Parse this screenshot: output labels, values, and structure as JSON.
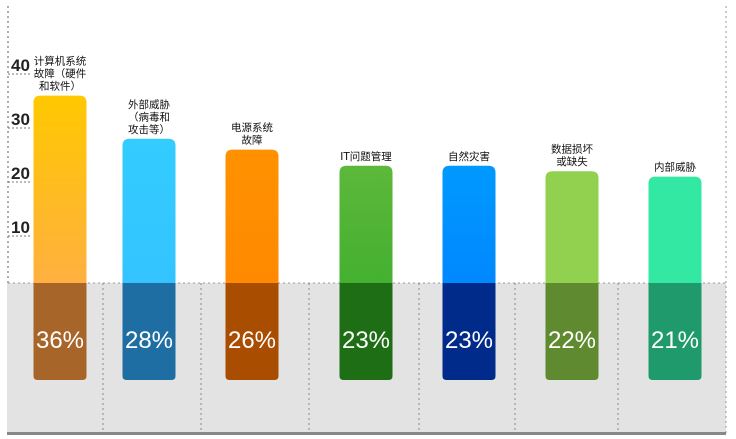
{
  "chart_data": {
    "type": "bar",
    "categories": [
      [
        "计算机系统",
        "故障（硬件",
        "和软件）"
      ],
      [
        "外部威胁",
        "（病毒和",
        "攻击等）"
      ],
      [
        "电源系统",
        "故障"
      ],
      [
        "IT问题管理"
      ],
      [
        "自然灾害"
      ],
      [
        "数据损坏",
        "或缺失"
      ],
      [
        "内部威胁"
      ]
    ],
    "values": [
      36,
      28,
      26,
      23,
      23,
      22,
      21
    ],
    "value_labels": [
      "36%",
      "28%",
      "26%",
      "23%",
      "23%",
      "22%",
      "21%"
    ],
    "yticks": [
      10,
      20,
      30,
      40
    ],
    "ylim": [
      0,
      40
    ],
    "grid": false,
    "colors": {
      "top": [
        "#ffc800",
        "#33ccff",
        "#ff9100",
        "#5cb83a",
        "#0099ff",
        "#92d050",
        "#33e8a3"
      ],
      "bottom": [
        "#ffb040",
        "#33c4ff",
        "#ff8a00",
        "#45b030",
        "#0088ff",
        "#92d050",
        "#33e8a3"
      ],
      "shade": [
        "#a8652a",
        "#1f6ea3",
        "#a94d00",
        "#1d6e14",
        "#002b8a",
        "#5f8a30",
        "#1e9a6c"
      ],
      "panel": "#e3e3e3",
      "baseline": "#888888"
    }
  }
}
